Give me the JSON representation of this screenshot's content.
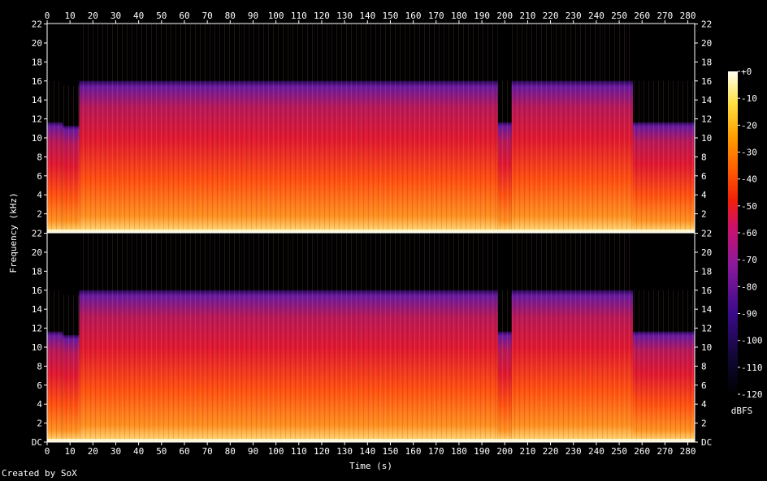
{
  "chart_data": {
    "type": "heatmap",
    "title": "",
    "xlabel": "Time (s)",
    "ylabel": "Frequency (kHz)",
    "x_ticks": [
      0,
      10,
      20,
      30,
      40,
      50,
      60,
      70,
      80,
      90,
      100,
      110,
      120,
      130,
      140,
      150,
      160,
      170,
      180,
      190,
      200,
      210,
      220,
      230,
      240,
      250,
      260,
      270,
      280
    ],
    "xlim": [
      0,
      283
    ],
    "y_ticks": [
      "DC",
      "2",
      "4",
      "6",
      "8",
      "10",
      "12",
      "14",
      "16",
      "18",
      "20",
      "22"
    ],
    "y_ticks_top_channel": [
      "2",
      "4",
      "6",
      "8",
      "10",
      "12",
      "14",
      "16",
      "18",
      "20",
      "22"
    ],
    "ylim_khz": [
      0,
      22.05
    ],
    "channels": 2,
    "colorbar": {
      "label": "dBFS",
      "ticks": [
        "+0",
        "-10",
        "-20",
        "-30",
        "-40",
        "-50",
        "-60",
        "-70",
        "-80",
        "-90",
        "-100",
        "-110",
        "-120"
      ],
      "range": [
        -120,
        0
      ]
    },
    "regions": [
      {
        "from": 0,
        "to": 7,
        "cutoff_khz": 16
      },
      {
        "from": 7,
        "to": 14,
        "cutoff_khz": 15.5
      },
      {
        "from": 14,
        "to": 197,
        "cutoff_khz": 22
      },
      {
        "from": 197,
        "to": 203,
        "cutoff_khz": 16
      },
      {
        "from": 203,
        "to": 256,
        "cutoff_khz": 22
      },
      {
        "from": 256,
        "to": 283,
        "cutoff_khz": 16
      }
    ]
  },
  "footer": {
    "credit": "Created by SoX"
  },
  "colors": {
    "background": "#000000",
    "text": "#ffffff",
    "axis": "#ffffff"
  }
}
